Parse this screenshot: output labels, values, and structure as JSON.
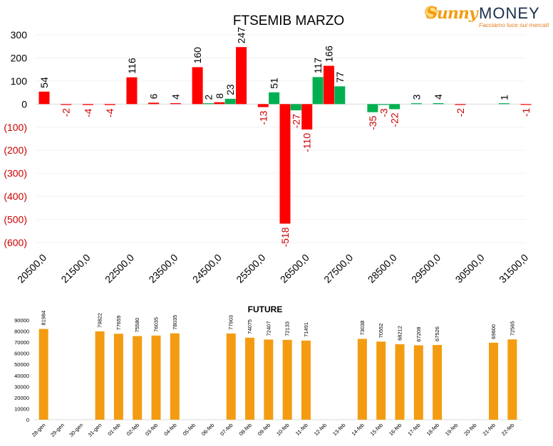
{
  "chart_data": [
    {
      "type": "bar",
      "title": "FTSEMIB MARZO",
      "xlabel": "",
      "ylabel": "",
      "ylim": [
        -600,
        300
      ],
      "yticks": [
        "300",
        "200",
        "100",
        "0",
        "(100)",
        "(200)",
        "(300)",
        "(400)",
        "(500)",
        "(600)"
      ],
      "ytick_values": [
        300,
        200,
        100,
        0,
        -100,
        -200,
        -300,
        -400,
        -500,
        -600
      ],
      "xticks": [
        "20500,0",
        "21500,0",
        "22500,0",
        "23500,0",
        "24500,0",
        "25500,0",
        "26500,0",
        "27500,0",
        "28500,0",
        "29500,0",
        "30500,0",
        "31500,0"
      ],
      "xlim": [
        20500,
        31500
      ],
      "colors": {
        "red": "#ff0000",
        "green": "#00b050",
        "negative_label": "#cc0000",
        "positive_label": "#000000"
      },
      "bars": [
        {
          "x": 20500,
          "value": 54,
          "label": "54",
          "color": "red"
        },
        {
          "x": 21000,
          "value": -2,
          "label": "-2",
          "color": "red"
        },
        {
          "x": 21500,
          "value": -4,
          "label": "-4",
          "color": "red"
        },
        {
          "x": 22000,
          "value": -4,
          "label": "-4",
          "color": "red"
        },
        {
          "x": 22500,
          "value": 116,
          "label": "116",
          "color": "red"
        },
        {
          "x": 23000,
          "value": 6,
          "label": "6",
          "color": "red"
        },
        {
          "x": 23500,
          "value": 4,
          "label": "4",
          "color": "red"
        },
        {
          "x": 24000,
          "value": 160,
          "label": "160",
          "color": "red"
        },
        {
          "x": 24250,
          "value": 2,
          "label": "2",
          "color": "green"
        },
        {
          "x": 24500,
          "value": 8,
          "label": "8",
          "color": "red"
        },
        {
          "x": 24750,
          "value": 23,
          "label": "23",
          "color": "green"
        },
        {
          "x": 25000,
          "value": 247,
          "label": "247",
          "color": "red"
        },
        {
          "x": 25500,
          "value": -13,
          "label": "-13",
          "color": "red"
        },
        {
          "x": 25750,
          "value": 51,
          "label": "51",
          "color": "green"
        },
        {
          "x": 26000,
          "value": -518,
          "label": "-518",
          "color": "red"
        },
        {
          "x": 26250,
          "value": -27,
          "label": "-27",
          "color": "green"
        },
        {
          "x": 26500,
          "value": -110,
          "label": "-110",
          "color": "red"
        },
        {
          "x": 26750,
          "value": 117,
          "label": "117",
          "color": "green"
        },
        {
          "x": 27000,
          "value": 166,
          "label": "166",
          "color": "red"
        },
        {
          "x": 27250,
          "value": 77,
          "label": "77",
          "color": "green"
        },
        {
          "x": 28000,
          "value": -35,
          "label": "-35",
          "color": "green"
        },
        {
          "x": 28250,
          "value": -3,
          "label": "-3",
          "color": "green"
        },
        {
          "x": 28500,
          "value": -22,
          "label": "-22",
          "color": "green"
        },
        {
          "x": 29000,
          "value": 3,
          "label": "3",
          "color": "green"
        },
        {
          "x": 29500,
          "value": 4,
          "label": "4",
          "color": "green"
        },
        {
          "x": 30000,
          "value": -2,
          "label": "-2",
          "color": "red"
        },
        {
          "x": 31000,
          "value": 1,
          "label": "1",
          "color": "green"
        },
        {
          "x": 31500,
          "value": -1,
          "label": "-1",
          "color": "red"
        }
      ]
    },
    {
      "type": "bar",
      "title": "FUTURE",
      "xlabel": "",
      "ylabel": "",
      "ylim": [
        0,
        90000
      ],
      "yticks": [
        "90000",
        "80000",
        "70000",
        "60000",
        "50000",
        "40000",
        "30000",
        "20000",
        "10000",
        "0"
      ],
      "ytick_values": [
        90000,
        80000,
        70000,
        60000,
        50000,
        40000,
        30000,
        20000,
        10000,
        0
      ],
      "color": "#f39c12",
      "categories": [
        "28-gen",
        "29-gen",
        "30-gen",
        "31-gen",
        "01-feb",
        "02-feb",
        "03-feb",
        "04-feb",
        "05-feb",
        "06-feb",
        "07-feb",
        "08-feb",
        "09-feb",
        "10-feb",
        "11-feb",
        "12-feb",
        "13-feb",
        "14-feb",
        "15-feb",
        "16-feb",
        "17-feb",
        "18-feb",
        "19-feb",
        "20-feb",
        "21-feb",
        "22-feb"
      ],
      "values": [
        81984,
        null,
        null,
        79822,
        77659,
        75580,
        76035,
        78035,
        null,
        null,
        77903,
        74075,
        72407,
        72133,
        71491,
        null,
        null,
        73038,
        70552,
        68212,
        67208,
        67526,
        null,
        null,
        69600,
        72565
      ],
      "value_labels": [
        "81984",
        "",
        "",
        "79822",
        "77659",
        "75580",
        "76035",
        "78035",
        "",
        "",
        "77903",
        "74075",
        "72407",
        "72133",
        "71491",
        "",
        "",
        "73038",
        "70552",
        "68212",
        "67208",
        "67526",
        "",
        "",
        "69600",
        "72565"
      ]
    }
  ],
  "logo": {
    "brand_a": "Sunny",
    "brand_b": "MONEY",
    "tagline": "Facciamo luce sui mercati"
  }
}
